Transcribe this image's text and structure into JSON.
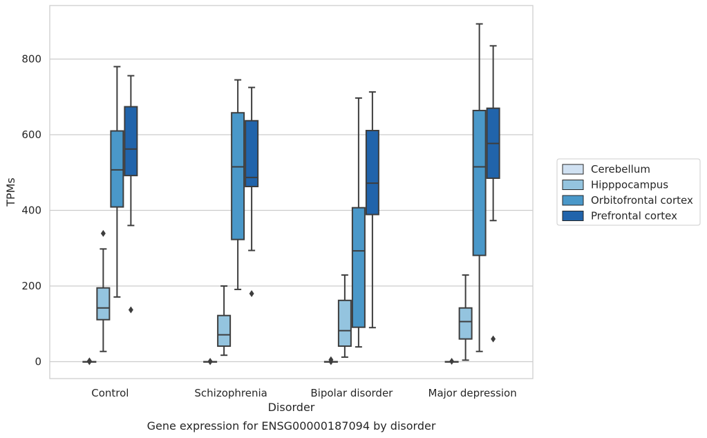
{
  "chart_data": {
    "type": "box",
    "xlabel": "Disorder",
    "ylabel": "TPMs",
    "caption": "Gene expression for ENSG00000187094 by disorder",
    "categories": [
      "Control",
      "Schizophrenia",
      "Bipolar disorder",
      "Major depression"
    ],
    "ylim": [
      -42,
      940
    ],
    "yticks": [
      0,
      200,
      400,
      600,
      800
    ],
    "grid": "horizontal",
    "legend_position": "right",
    "colors": [
      "#d0e1f2",
      "#94c4df",
      "#4a98c9",
      "#2164ab"
    ],
    "series": [
      {
        "name": "Cerebellum",
        "boxes": [
          {
            "min": 0,
            "q1": 0,
            "median": 0,
            "q3": 0,
            "max": 0,
            "outliers": [
              0,
              2
            ]
          },
          {
            "min": 0,
            "q1": 0,
            "median": 0,
            "q3": 0,
            "max": 0,
            "outliers": [
              0,
              1
            ]
          },
          {
            "min": 0,
            "q1": 0,
            "median": 0,
            "q3": 0,
            "max": 0,
            "outliers": [
              0,
              5
            ]
          },
          {
            "min": 0,
            "q1": 0,
            "median": 0,
            "q3": 0,
            "max": 0,
            "outliers": [
              1
            ]
          }
        ]
      },
      {
        "name": "Hipppocampus",
        "boxes": [
          {
            "min": 27,
            "q1": 111,
            "median": 142,
            "q3": 195,
            "max": 298,
            "outliers": [
              339
            ]
          },
          {
            "min": 17,
            "q1": 41,
            "median": 71,
            "q3": 122,
            "max": 200,
            "outliers": []
          },
          {
            "min": 12,
            "q1": 41,
            "median": 82,
            "q3": 162,
            "max": 229,
            "outliers": []
          },
          {
            "min": 4,
            "q1": 60,
            "median": 106,
            "q3": 142,
            "max": 229,
            "outliers": []
          }
        ]
      },
      {
        "name": "Orbitofrontal cortex",
        "boxes": [
          {
            "min": 171,
            "q1": 409,
            "median": 507,
            "q3": 610,
            "max": 780,
            "outliers": []
          },
          {
            "min": 191,
            "q1": 323,
            "median": 515,
            "q3": 658,
            "max": 745,
            "outliers": []
          },
          {
            "min": 39,
            "q1": 91,
            "median": 293,
            "q3": 407,
            "max": 697,
            "outliers": []
          },
          {
            "min": 27,
            "q1": 281,
            "median": 515,
            "q3": 664,
            "max": 893,
            "outliers": []
          }
        ]
      },
      {
        "name": "Prefrontal cortex",
        "boxes": [
          {
            "min": 360,
            "q1": 492,
            "median": 562,
            "q3": 674,
            "max": 756,
            "outliers": [
              137
            ]
          },
          {
            "min": 294,
            "q1": 463,
            "median": 487,
            "q3": 637,
            "max": 725,
            "outliers": [
              180
            ]
          },
          {
            "min": 90,
            "q1": 389,
            "median": 472,
            "q3": 611,
            "max": 713,
            "outliers": []
          },
          {
            "min": 373,
            "q1": 485,
            "median": 577,
            "q3": 670,
            "max": 835,
            "outliers": [
              60
            ]
          }
        ]
      }
    ]
  }
}
